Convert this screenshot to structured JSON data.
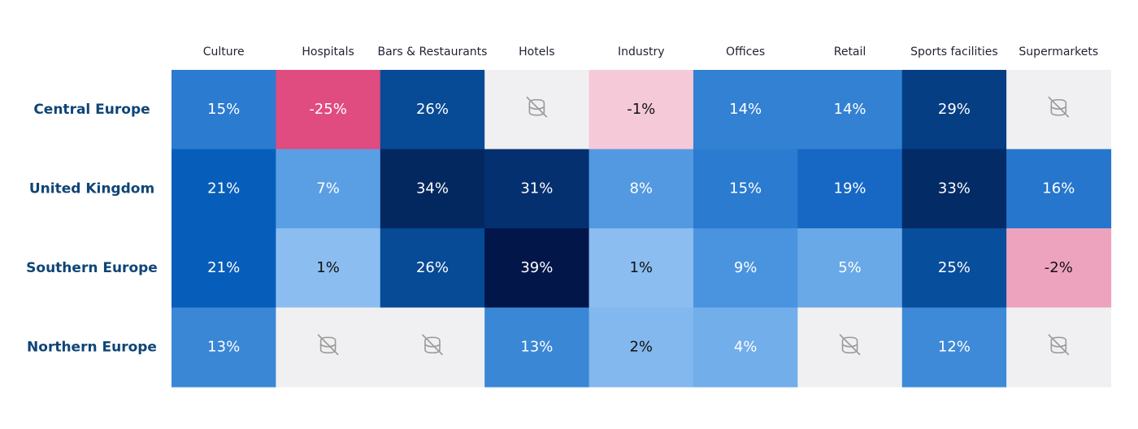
{
  "chart_data": {
    "type": "heatmap",
    "title": "",
    "xlabel": "",
    "ylabel": "",
    "columns": [
      "Culture",
      "Hospitals",
      "Bars & Restaurants",
      "Hotels",
      "Industry",
      "Offices",
      "Retail",
      "Sports facilities",
      "Supermarkets"
    ],
    "rows": [
      "Central Europe",
      "United Kingdom",
      "Southern Europe",
      "Northern Europe"
    ],
    "values": [
      [
        15,
        -25,
        26,
        null,
        -1,
        14,
        14,
        29,
        null
      ],
      [
        21,
        7,
        34,
        31,
        8,
        15,
        19,
        33,
        16
      ],
      [
        21,
        1,
        26,
        39,
        1,
        9,
        5,
        25,
        -2
      ],
      [
        13,
        null,
        null,
        13,
        2,
        4,
        null,
        12,
        null
      ]
    ],
    "labels": [
      [
        "15%",
        "-25%",
        "26%",
        "",
        "-1%",
        "14%",
        "14%",
        "29%",
        ""
      ],
      [
        "21%",
        "7%",
        "34%",
        "31%",
        "8%",
        "15%",
        "19%",
        "33%",
        "16%"
      ],
      [
        "21%",
        "1%",
        "26%",
        "39%",
        "1%",
        "9%",
        "5%",
        "25%",
        "-2%"
      ],
      [
        "13%",
        "",
        "",
        "13%",
        "2%",
        "4%",
        "",
        "12%",
        ""
      ]
    ],
    "no_data_icon": "no-data-icon",
    "colors": {
      "no_data": "#f0f0f2",
      "no_data_icon": "#9a9a9a",
      "negative_strong": "#e04b80",
      "negative_mid": "#eda3bd",
      "negative_light": "#f6c9d8",
      "row_label": "#0f4577"
    }
  }
}
